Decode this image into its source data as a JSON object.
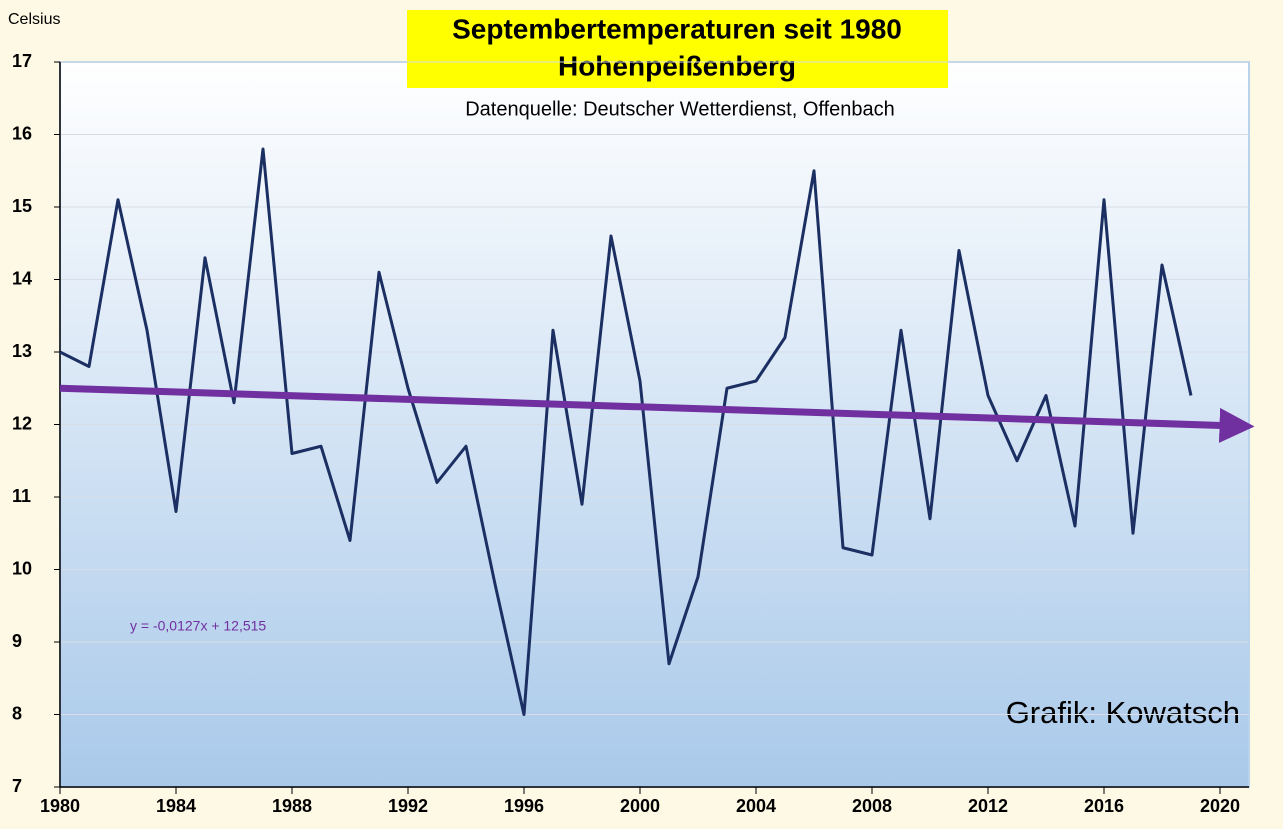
{
  "chart_data": {
    "type": "line",
    "title": [
      "Septembertemperaturen seit 1980",
      "Hohenpeißenberg"
    ],
    "subtitle": "Datenquelle: Deutscher Wetterdienst, Offenbach",
    "y_label": "Celsius",
    "annotations": [
      "Grafik: Kowatsch",
      "y = -0,0127x + 12,515"
    ],
    "x": [
      1980,
      1981,
      1982,
      1983,
      1984,
      1985,
      1986,
      1987,
      1988,
      1989,
      1990,
      1991,
      1992,
      1993,
      1994,
      1995,
      1996,
      1997,
      1998,
      1999,
      2000,
      2001,
      2002,
      2003,
      2004,
      2005,
      2006,
      2007,
      2008,
      2009,
      2010,
      2011,
      2012,
      2013,
      2014,
      2015,
      2016,
      2017,
      2018,
      2019
    ],
    "series": [
      {
        "color": "#1b2f63",
        "values": [
          13.0,
          12.8,
          15.1,
          13.3,
          10.8,
          14.3,
          12.3,
          15.8,
          11.6,
          11.7,
          10.4,
          14.1,
          12.5,
          11.2,
          11.7,
          9.8,
          8.0,
          13.3,
          10.9,
          14.6,
          12.6,
          8.7,
          9.9,
          12.5,
          12.6,
          13.2,
          15.5,
          10.3,
          10.2,
          13.3,
          10.7,
          14.4,
          12.4,
          11.5,
          12.4,
          10.6,
          15.1,
          10.5,
          14.2,
          12.4
        ]
      }
    ],
    "trend": {
      "color": "#7030a0",
      "x": [
        1980,
        2021
      ],
      "values": [
        12.5,
        11.98
      ]
    },
    "xlim": [
      1980,
      2021
    ],
    "xticks": [
      1980,
      1984,
      1988,
      1992,
      1996,
      2000,
      2004,
      2008,
      2012,
      2016,
      2020
    ],
    "ylim": [
      7,
      17
    ],
    "yticks": [
      7,
      8,
      9,
      10,
      11,
      12,
      13,
      14,
      15,
      16,
      17
    ],
    "grid": true
  }
}
